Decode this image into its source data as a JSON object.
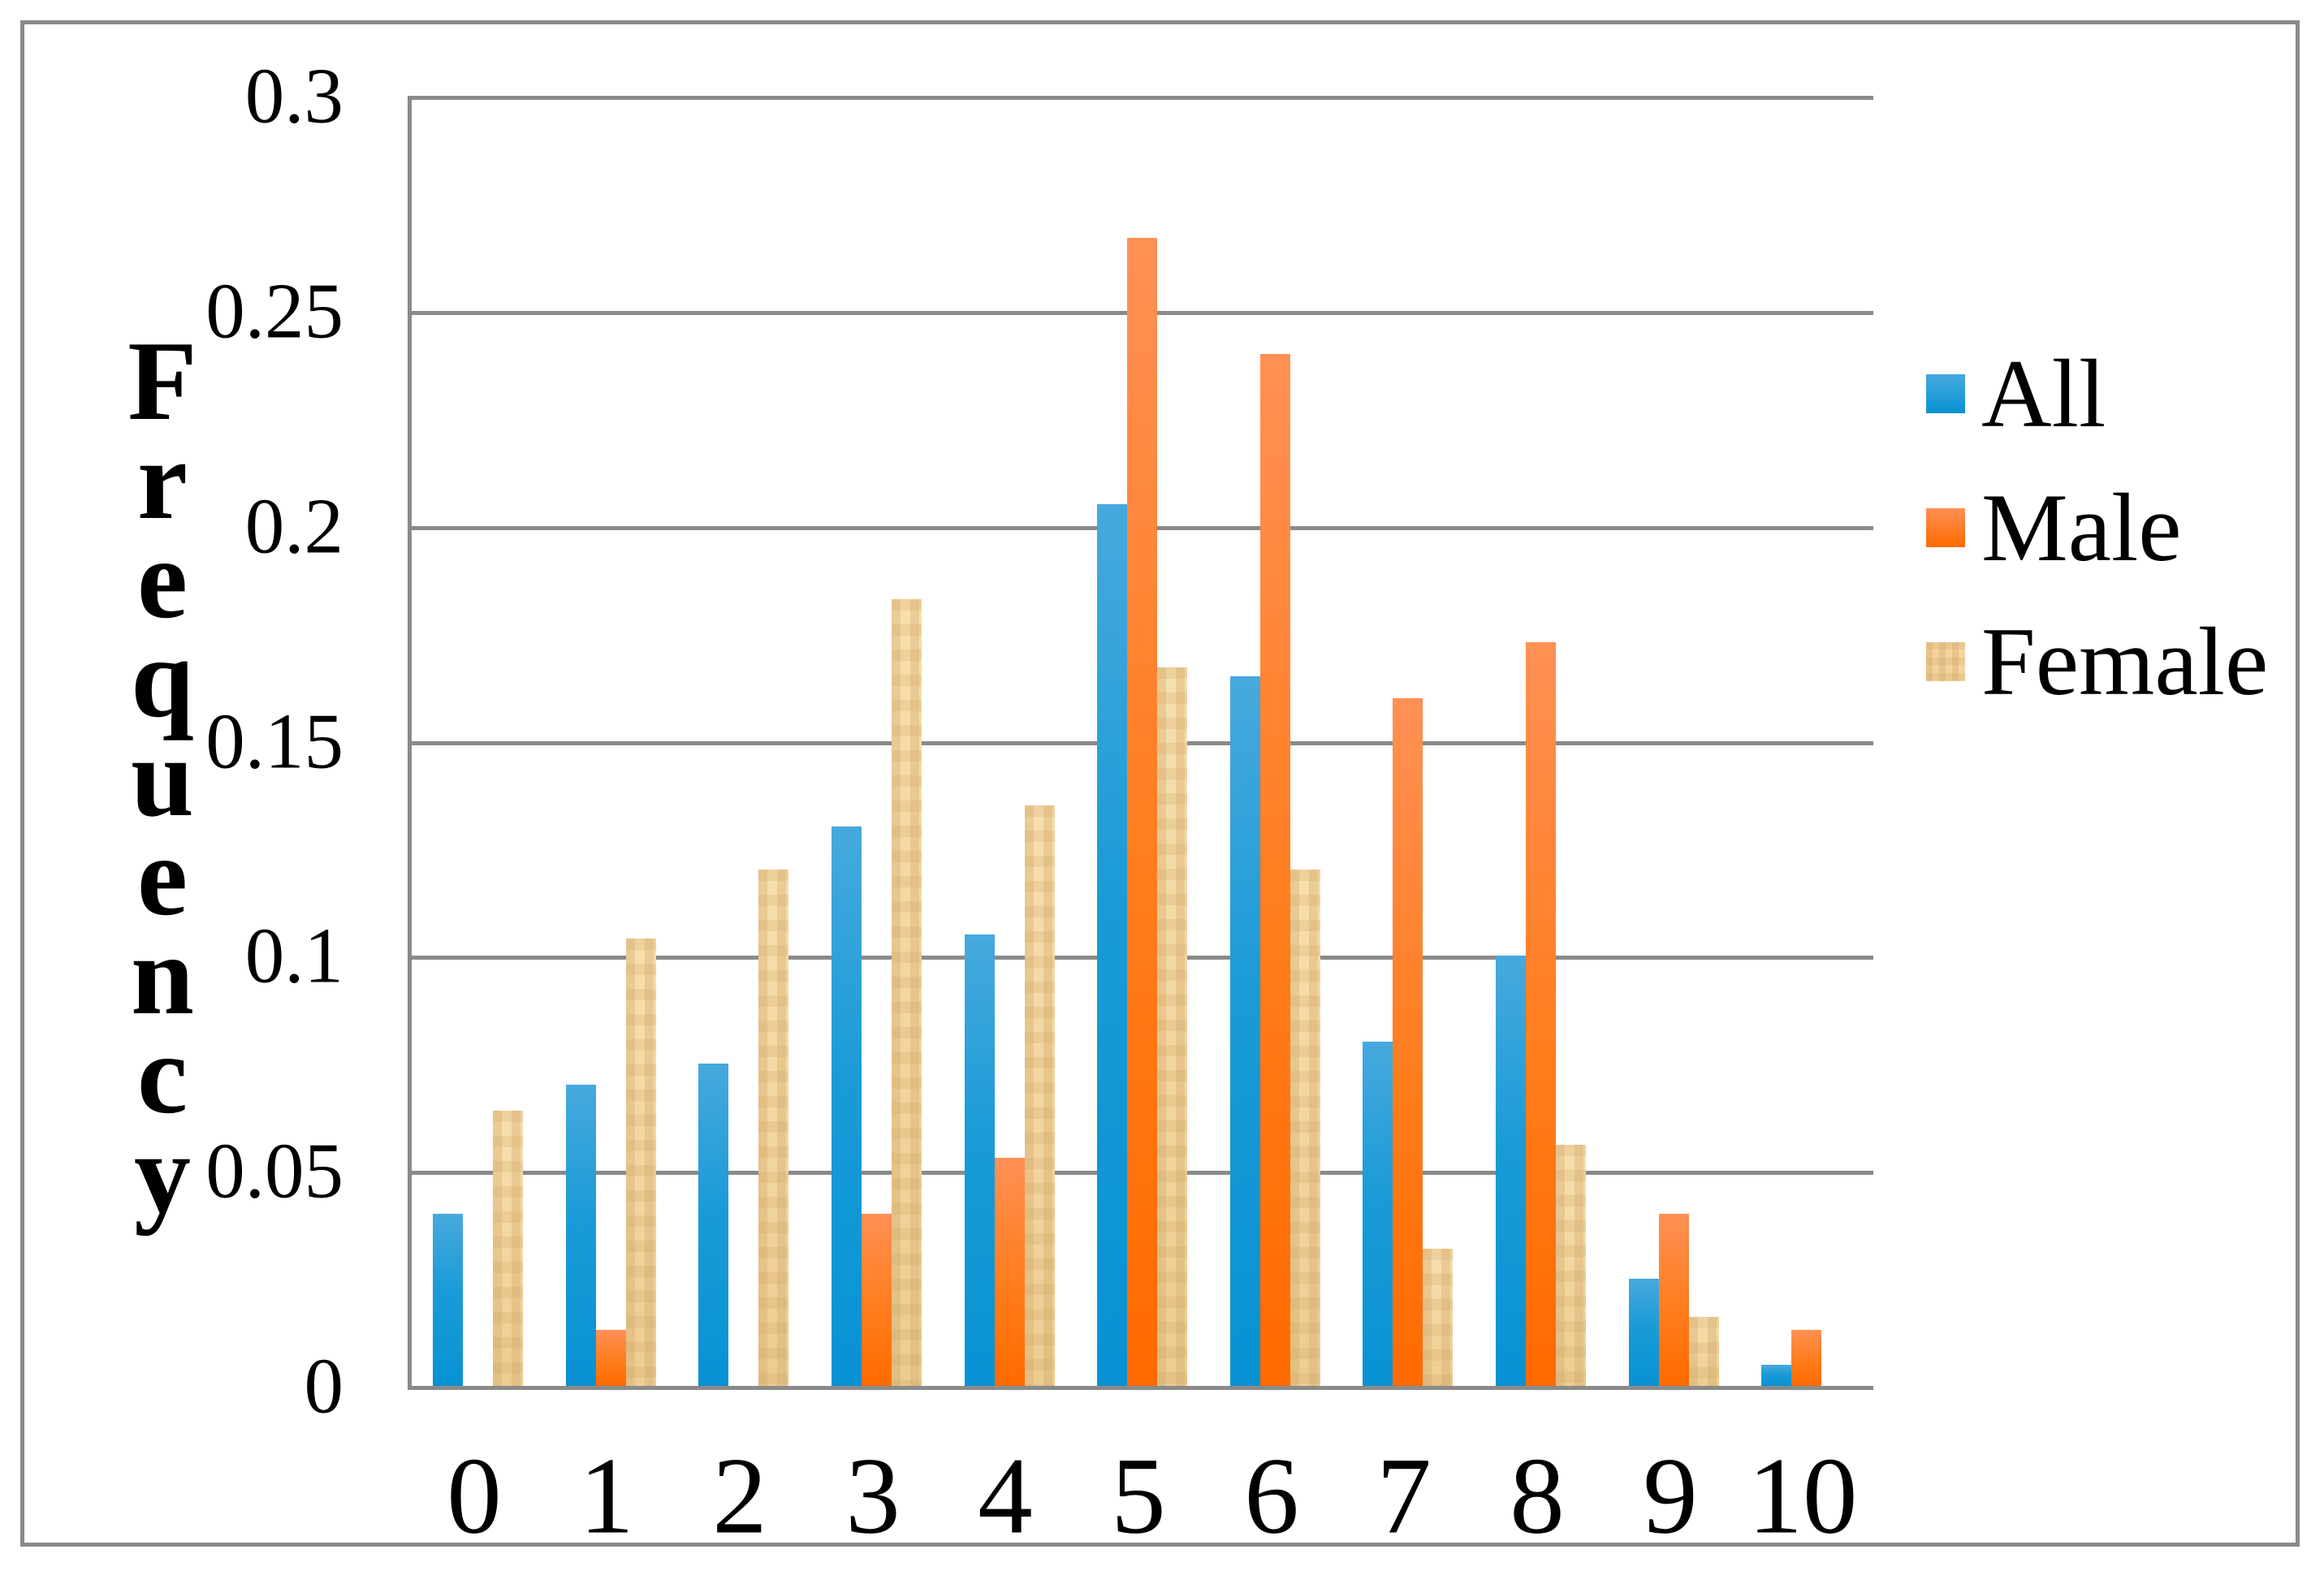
{
  "figure": {
    "background": "#ffffff",
    "frame_color": "#8a8a8a",
    "axis_color": "#8a8a8a",
    "gridline_color": "#8a8a8a",
    "text_color": "#000000"
  },
  "chart_data": {
    "type": "bar",
    "title": "",
    "xlabel": "",
    "ylabel": "Frequency",
    "categories": [
      "0",
      "1",
      "2",
      "3",
      "4",
      "5",
      "6",
      "7",
      "8",
      "9",
      "10"
    ],
    "series": [
      {
        "name": "All",
        "color": "#1a9bd7",
        "values": [
          0.04,
          0.07,
          0.075,
          0.13,
          0.105,
          0.205,
          0.165,
          0.08,
          0.1,
          0.025,
          0.005
        ]
      },
      {
        "name": "Male",
        "color": "#ff7d1d",
        "values": [
          0,
          0.013,
          0,
          0.04,
          0.053,
          0.267,
          0.24,
          0.16,
          0.173,
          0.04,
          0.013
        ]
      },
      {
        "name": "Female",
        "color": "#f2d49e",
        "values": [
          0.064,
          0.104,
          0.12,
          0.183,
          0.135,
          0.167,
          0.12,
          0.032,
          0.056,
          0.016,
          0
        ]
      }
    ],
    "ylim": [
      0,
      0.3
    ],
    "yticks": [
      {
        "value": 0,
        "label": "0"
      },
      {
        "value": 0.05,
        "label": "0.05"
      },
      {
        "value": 0.1,
        "label": "0.1"
      },
      {
        "value": 0.15,
        "label": "0.15"
      },
      {
        "value": 0.2,
        "label": "0.2"
      },
      {
        "value": 0.25,
        "label": "0.25"
      },
      {
        "value": 0.3,
        "label": "0.3"
      }
    ],
    "grid": true,
    "legend_position": "right",
    "legend_entries": [
      "All",
      "Male",
      "Female"
    ]
  }
}
